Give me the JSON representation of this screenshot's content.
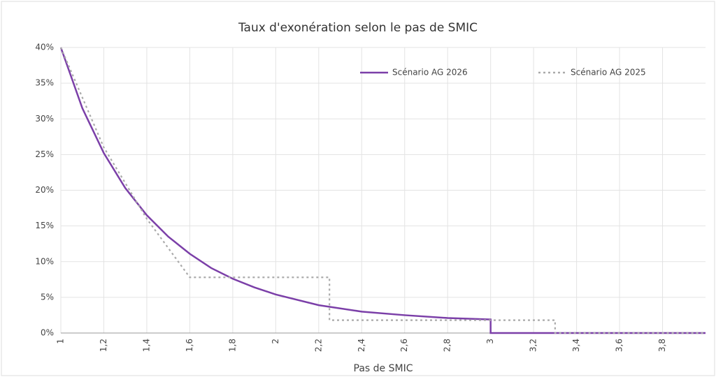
{
  "chart_data": {
    "type": "line",
    "title": "Taux d'exonération selon le pas de SMIC",
    "x_label": "Pas de SMIC",
    "xlim": [
      1,
      4
    ],
    "xticks": [
      1,
      {
        "value": 1.2,
        "label": "1,2"
      },
      {
        "value": 1.4,
        "label": "1,4"
      },
      {
        "value": 1.6,
        "label": "1,6"
      },
      {
        "value": 1.8,
        "label": "1,8"
      },
      2,
      {
        "value": 2.2,
        "label": "2,2"
      },
      {
        "value": 2.4,
        "label": "2,4"
      },
      {
        "value": 2.6,
        "label": "2,6"
      },
      {
        "value": 2.8,
        "label": "2,8"
      },
      3,
      {
        "value": 3.2,
        "label": "3,2"
      },
      {
        "value": 3.4,
        "label": "3,4"
      },
      {
        "value": 3.6,
        "label": "3,6"
      },
      {
        "value": 3.8,
        "label": "3,8"
      }
    ],
    "ylim": [
      0,
      40
    ],
    "yticks": [
      {
        "value": 0,
        "label": "0%"
      },
      {
        "value": 5,
        "label": "5%"
      },
      {
        "value": 10,
        "label": "10%"
      },
      {
        "value": 15,
        "label": "15%"
      },
      {
        "value": 20,
        "label": "20%"
      },
      {
        "value": 25,
        "label": "25%"
      },
      {
        "value": 30,
        "label": "30%"
      },
      {
        "value": 35,
        "label": "35%"
      },
      {
        "value": 40,
        "label": "40%"
      }
    ],
    "grid": true,
    "legend": "top-right",
    "series": [
      {
        "name": "Scénario AG 2026",
        "color": "#7b3fa8",
        "dash": "solid",
        "x": [
          1,
          1.1,
          1.2,
          1.3,
          1.4,
          1.5,
          1.6,
          1.7,
          1.8,
          1.9,
          2.0,
          2.2,
          2.4,
          2.6,
          2.8,
          3,
          3,
          4
        ],
        "values": [
          40,
          31.5,
          25.2,
          20.3,
          16.5,
          13.5,
          11.1,
          9.1,
          7.6,
          6.4,
          5.4,
          3.9,
          3.0,
          2.5,
          2.1,
          1.9,
          0,
          0
        ]
      },
      {
        "name": "Scénario AG 2025",
        "color": "#aaaaaa",
        "dash": "dotted",
        "x": [
          1,
          1.2,
          1.4,
          1.6,
          2.25,
          2.25,
          3.3,
          3.3,
          4
        ],
        "values": [
          40,
          26,
          16,
          7.8,
          7.8,
          1.8,
          1.8,
          0,
          0
        ]
      }
    ]
  }
}
